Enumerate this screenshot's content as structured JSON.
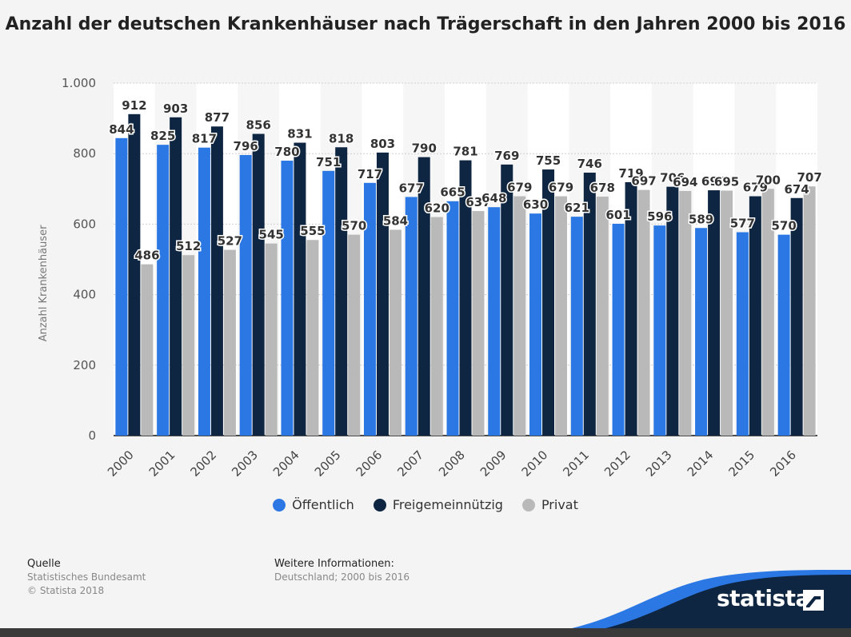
{
  "title": "Anzahl der deutschen Krankenhäuser nach Trägerschaft in den Jahren 2000 bis 2016",
  "chart_data": {
    "type": "bar",
    "ylabel": "Anzahl Krankenhäuser",
    "xlabel": "",
    "ylim": [
      0,
      1000
    ],
    "yticks": [
      0,
      200,
      400,
      600,
      800,
      1000
    ],
    "ytick_labels": [
      "0",
      "200",
      "400",
      "600",
      "800",
      "1.000"
    ],
    "categories": [
      "2000",
      "2001",
      "2002",
      "2003",
      "2004",
      "2005",
      "2006",
      "2007",
      "2008",
      "2009",
      "2010",
      "2011",
      "2012",
      "2013",
      "2014",
      "2015",
      "2016"
    ],
    "series": [
      {
        "name": "Öffentlich",
        "color": "#2b78e4",
        "values": [
          844,
          825,
          817,
          796,
          780,
          751,
          717,
          677,
          665,
          648,
          630,
          621,
          601,
          596,
          589,
          577,
          570
        ]
      },
      {
        "name": "Freigemeinnützig",
        "color": "#0f2642",
        "values": [
          912,
          903,
          877,
          856,
          831,
          818,
          803,
          790,
          781,
          769,
          755,
          746,
          719,
          706,
          696,
          679,
          674
        ]
      },
      {
        "name": "Privat",
        "color": "#b9b9b9",
        "values": [
          486,
          512,
          527,
          545,
          555,
          570,
          584,
          620,
          637,
          679,
          679,
          678,
          697,
          694,
          695,
          700,
          707
        ]
      }
    ],
    "grid": true,
    "legend_position": "bottom"
  },
  "footer": {
    "source_heading": "Quelle",
    "source_line1": "Statistisches Bundesamt",
    "source_line2": "© Statista 2018",
    "info_heading": "Weitere Informationen:",
    "info_line": "Deutschland; 2000 bis 2016"
  },
  "brand": "statista",
  "colors": {
    "band": "#0f2642",
    "band_accent": "#2b78e4"
  }
}
